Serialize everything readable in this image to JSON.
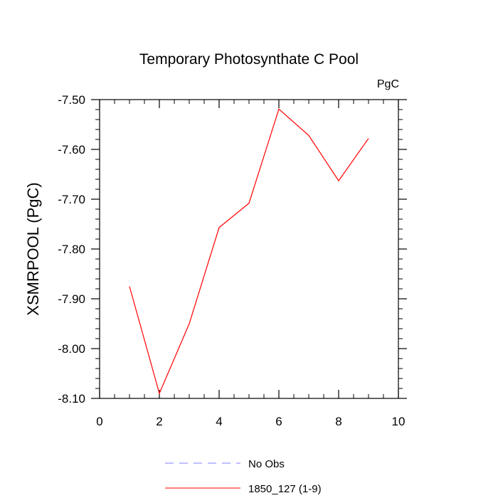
{
  "chart_data": {
    "type": "line",
    "title": "Temporary Photosynthate C Pool",
    "units_label": "PgC",
    "xlabel": "",
    "ylabel": "XSMRPOOL  (PgC)",
    "xlim": [
      0,
      10
    ],
    "ylim": [
      -8.1,
      -7.5
    ],
    "x_ticks": [
      0,
      2,
      4,
      6,
      8,
      10
    ],
    "x_tick_labels": [
      "0",
      "2",
      "4",
      "6",
      "8",
      "10"
    ],
    "y_ticks": [
      -7.5,
      -7.6,
      -7.7,
      -7.8,
      -7.9,
      -8.0,
      -8.1
    ],
    "y_tick_labels": [
      "-7.50",
      "-7.60",
      "-7.70",
      "-7.80",
      "-7.90",
      "-8.00",
      "-8.10"
    ],
    "grid": false,
    "legend_position": "bottom",
    "series": [
      {
        "name": "1850_127 (1-9)",
        "color": "#ff0000",
        "dash": "solid",
        "x": [
          1,
          2,
          3,
          4,
          5,
          6,
          7,
          8,
          9
        ],
        "y": [
          -7.875,
          -8.09,
          -7.95,
          -7.757,
          -7.708,
          -7.519,
          -7.572,
          -7.663,
          -7.578
        ]
      }
    ],
    "legend": [
      {
        "label": "No Obs",
        "color": "#8080ff",
        "dash": "dashed"
      },
      {
        "label": "1850_127 (1-9)",
        "color": "#ff0000",
        "dash": "solid"
      }
    ]
  }
}
